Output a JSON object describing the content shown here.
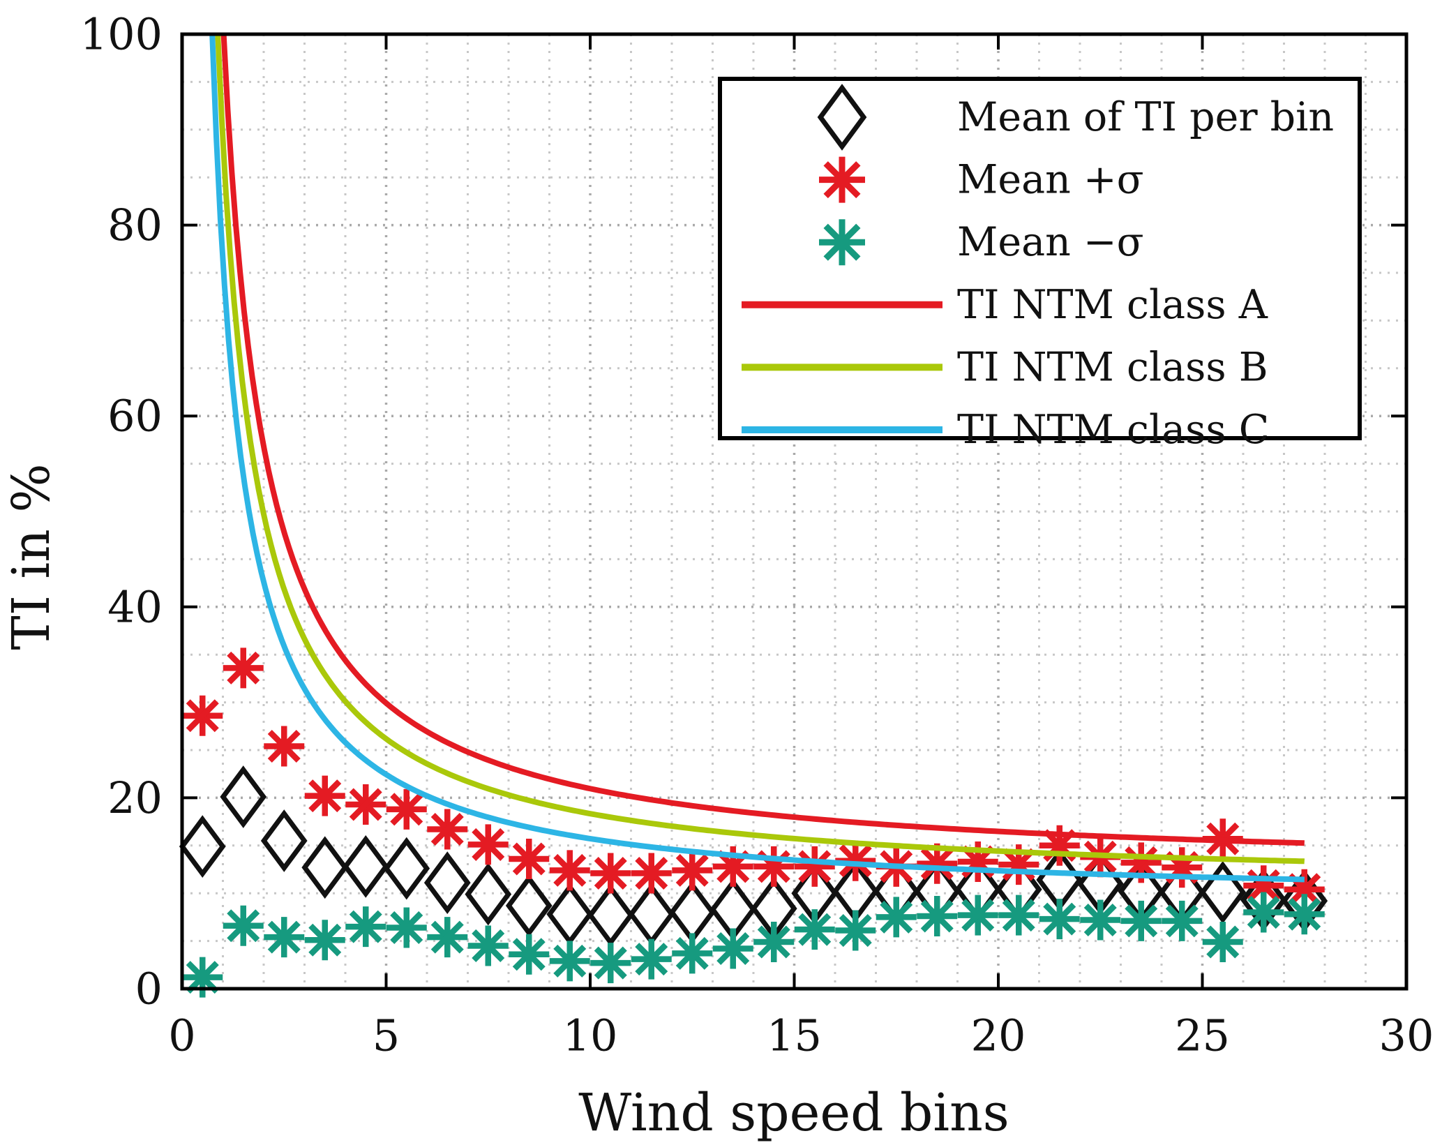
{
  "page": {
    "background": "#ffffff"
  },
  "chart_data": {
    "type": "scatter+line",
    "title": "",
    "xlabel": "Wind speed bins",
    "ylabel": "TI in %",
    "xlim": [
      0,
      30
    ],
    "ylim": [
      0,
      100
    ],
    "x_ticks": [
      0,
      5,
      10,
      15,
      20,
      25,
      30
    ],
    "y_ticks": [
      0,
      20,
      40,
      60,
      80,
      100
    ],
    "x_minor_step": 1,
    "y_minor_step": 5,
    "grid": "dotted-major-and-minor",
    "legend_position": "top-right",
    "bins": [
      0.5,
      1.5,
      2.5,
      3.5,
      4.5,
      5.5,
      6.5,
      7.5,
      8.5,
      9.5,
      10.5,
      11.5,
      12.5,
      13.5,
      14.5,
      15.5,
      16.5,
      17.5,
      18.5,
      19.5,
      20.5,
      21.5,
      22.5,
      23.5,
      24.5,
      25.5,
      26.5,
      27.5
    ],
    "series": [
      {
        "name": "Mean of TI per bin",
        "marker": "diamond",
        "color": "#111111",
        "values": [
          14.9,
          20.1,
          15.5,
          12.7,
          12.8,
          12.6,
          11.1,
          9.9,
          8.7,
          7.8,
          7.7,
          7.8,
          8.0,
          8.3,
          8.4,
          10.0,
          10.2,
          10.2,
          10.2,
          10.4,
          10.4,
          11.4,
          11.0,
          10.2,
          10.1,
          10.1,
          9.3,
          9.2
        ]
      },
      {
        "name": "Mean +σ",
        "marker": "asterisk",
        "color": "#e41b23",
        "values": [
          28.6,
          33.6,
          25.4,
          20.2,
          19.3,
          18.8,
          16.7,
          15.1,
          13.6,
          12.4,
          12.1,
          12.1,
          12.4,
          12.8,
          12.8,
          12.8,
          13.4,
          12.8,
          13.1,
          13.3,
          13.0,
          15.0,
          13.8,
          13.2,
          12.7,
          15.7,
          10.8,
          10.4
        ]
      },
      {
        "name": "Mean −σ",
        "marker": "asterisk",
        "color": "#169a7f",
        "values": [
          1.2,
          6.6,
          5.4,
          5.1,
          6.5,
          6.4,
          5.4,
          4.5,
          3.6,
          2.9,
          2.7,
          3.1,
          3.7,
          4.2,
          4.9,
          6.2,
          6.1,
          7.5,
          7.6,
          7.7,
          7.7,
          7.3,
          7.2,
          7.1,
          7.1,
          4.9,
          8.0,
          7.8
        ]
      }
    ],
    "ntm_curves": [
      {
        "name": "TI NTM class A",
        "color": "#e41b23",
        "iref": 0.16,
        "b_param": 5.6,
        "v_end": 27.5,
        "points": [
          [
            1.02,
            100
          ],
          [
            1.1,
            93.5
          ],
          [
            1.2,
            86.7
          ],
          [
            1.35,
            78.4
          ],
          [
            1.5,
            71.7
          ],
          [
            1.7,
            64.7
          ],
          [
            2,
            56.8
          ],
          [
            2.3,
            51.0
          ],
          [
            2.7,
            45.2
          ],
          [
            3.2,
            40.0
          ],
          [
            3.8,
            35.6
          ],
          [
            4.5,
            31.9
          ],
          [
            5.5,
            28.3
          ],
          [
            6.5,
            25.8
          ],
          [
            8,
            23.2
          ],
          [
            10,
            21.0
          ],
          [
            12.5,
            19.2
          ],
          [
            15,
            18.0
          ],
          [
            18,
            17.0
          ],
          [
            21,
            16.3
          ],
          [
            24,
            15.7
          ],
          [
            27.5,
            15.3
          ]
        ]
      },
      {
        "name": "TI NTM class B",
        "color": "#aac80a",
        "iref": 0.14,
        "b_param": 5.6,
        "v_end": 27.5,
        "points": [
          [
            0.88,
            99.6
          ],
          [
            0.95,
            93.0
          ],
          [
            1.05,
            85.2
          ],
          [
            1.2,
            75.8
          ],
          [
            1.35,
            68.6
          ],
          [
            1.5,
            62.8
          ],
          [
            1.7,
            56.6
          ],
          [
            2,
            49.7
          ],
          [
            2.3,
            44.6
          ],
          [
            2.7,
            39.5
          ],
          [
            3.2,
            35.0
          ],
          [
            3.8,
            31.1
          ],
          [
            4.5,
            27.9
          ],
          [
            5.5,
            24.8
          ],
          [
            6.5,
            22.6
          ],
          [
            8,
            20.3
          ],
          [
            10,
            18.3
          ],
          [
            12.5,
            16.8
          ],
          [
            15,
            15.7
          ],
          [
            18,
            14.9
          ],
          [
            21,
            14.2
          ],
          [
            24,
            13.8
          ],
          [
            27.5,
            13.4
          ]
        ]
      },
      {
        "name": "TI NTM class C",
        "color": "#2db5e5",
        "iref": 0.12,
        "b_param": 5.6,
        "v_end": 27.5,
        "points": [
          [
            0.74,
            99.8
          ],
          [
            0.8,
            93.0
          ],
          [
            0.9,
            83.7
          ],
          [
            1,
            76.2
          ],
          [
            1.15,
            67.4
          ],
          [
            1.3,
            60.7
          ],
          [
            1.5,
            53.8
          ],
          [
            1.7,
            48.5
          ],
          [
            2,
            42.6
          ],
          [
            2.3,
            38.2
          ],
          [
            2.7,
            33.9
          ],
          [
            3.2,
            30.0
          ],
          [
            3.8,
            26.7
          ],
          [
            4.5,
            23.9
          ],
          [
            5.5,
            21.2
          ],
          [
            6.5,
            19.3
          ],
          [
            8,
            17.4
          ],
          [
            10,
            15.7
          ],
          [
            12.5,
            14.4
          ],
          [
            15,
            13.5
          ],
          [
            18,
            12.7
          ],
          [
            21,
            12.2
          ],
          [
            24,
            11.8
          ],
          [
            27.5,
            11.4
          ]
        ]
      }
    ],
    "colors": {
      "marker_mean": "#111111",
      "marker_plus_sigma": "#e41b23",
      "marker_minus_sigma": "#169a7f",
      "ntm_class_a": "#e41b23",
      "ntm_class_b": "#aac80a",
      "ntm_class_c": "#2db5e5",
      "grid_major": "#a9a9a9",
      "grid_minor": "#c7c7c7",
      "axes": "#000000",
      "text": "#111111",
      "legend_background": "#ffffff"
    }
  },
  "legend": {
    "entries": [
      {
        "label": "Mean of TI per bin",
        "symbol": "diamond",
        "color": "#111111"
      },
      {
        "label": "Mean +σ",
        "symbol": "asterisk",
        "color": "#e41b23"
      },
      {
        "label": "Mean −σ",
        "symbol": "asterisk",
        "color": "#169a7f"
      },
      {
        "label": "TI NTM class A",
        "symbol": "line",
        "color": "#e41b23"
      },
      {
        "label": "TI NTM class B",
        "symbol": "line",
        "color": "#aac80a"
      },
      {
        "label": "TI NTM class C",
        "symbol": "line",
        "color": "#2db5e5"
      }
    ]
  }
}
